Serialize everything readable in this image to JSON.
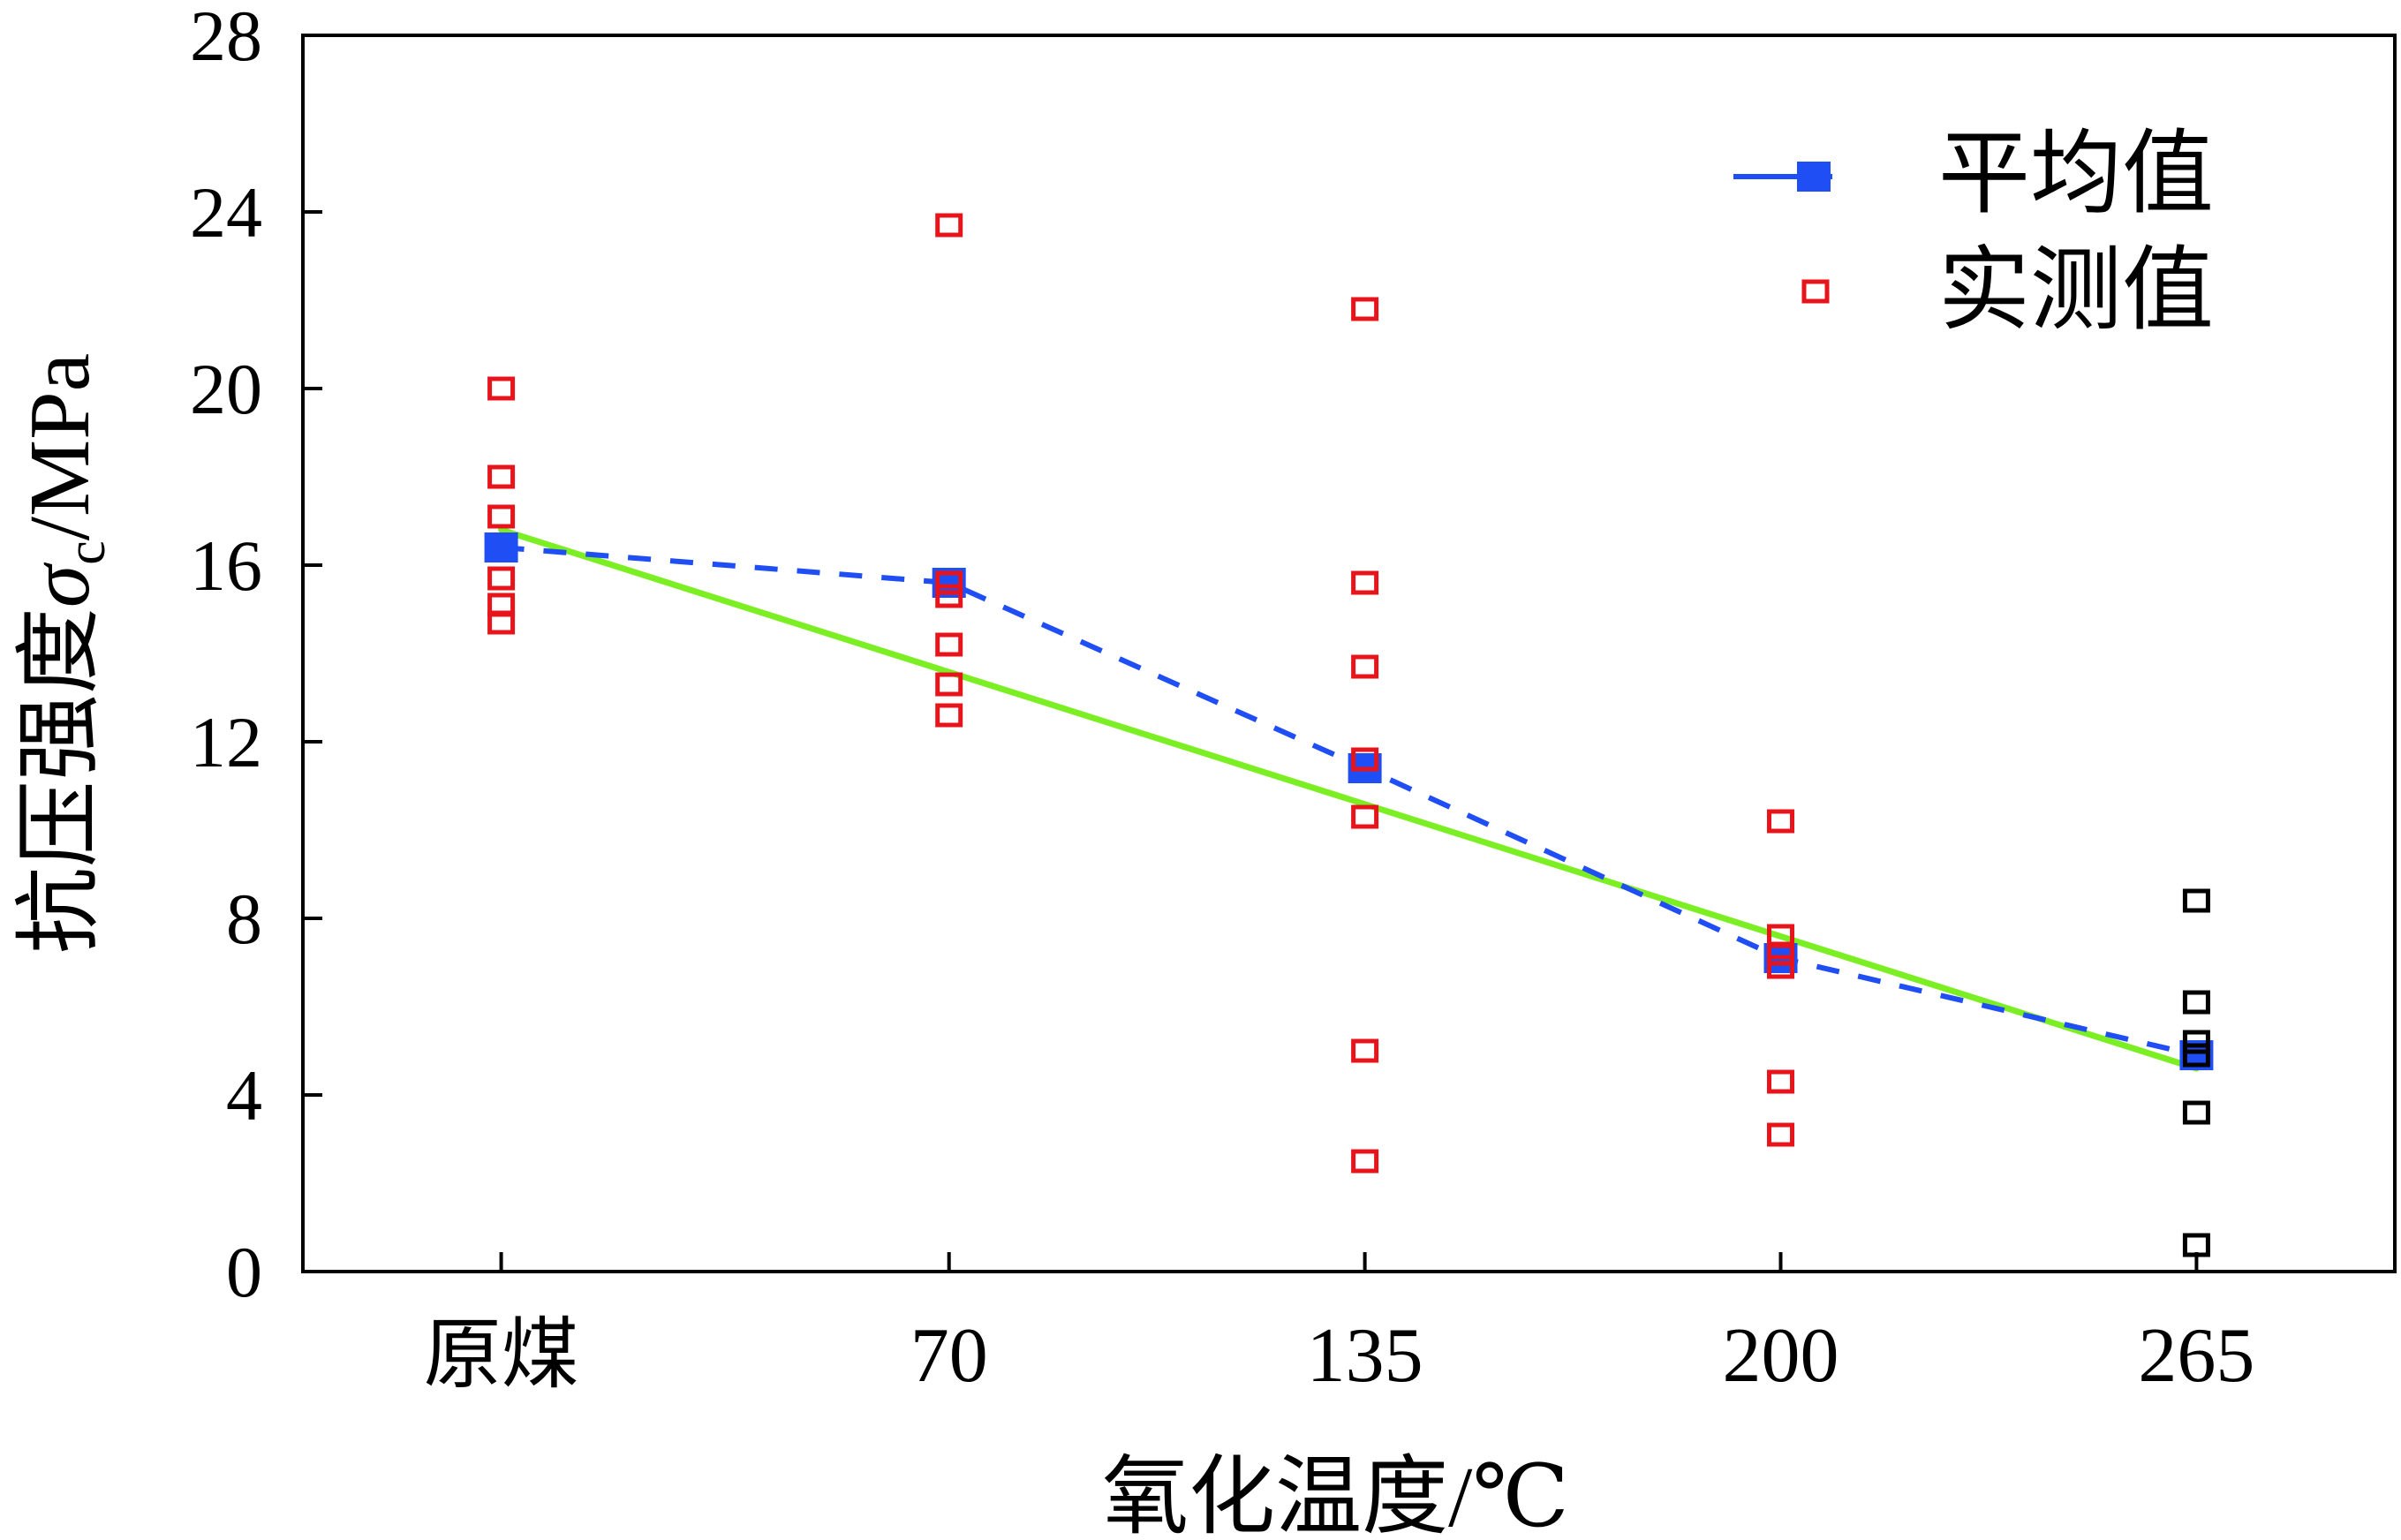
{
  "chart_data": {
    "type": "scatter",
    "title": "",
    "xlabel": "氧化温度/℃",
    "ylabel": {
      "prefix": "抗压强度",
      "symbol": "σ",
      "subscript": "c",
      "suffix": "/MPa"
    },
    "categories": [
      "原煤",
      "70",
      "135",
      "200",
      "265"
    ],
    "x_positions": [
      0,
      70,
      135,
      200,
      265
    ],
    "xlim": [
      -31,
      296
    ],
    "ylim": [
      0,
      28
    ],
    "yticks": [
      0,
      4,
      8,
      12,
      16,
      20,
      24,
      28
    ],
    "grid": false,
    "legend_position": "top-right",
    "series": [
      {
        "name": "平均值",
        "kind": "line-marker",
        "style": "dashed",
        "marker": "filled-square",
        "color": "#1f4ef5",
        "points": [
          {
            "x": 0,
            "y": 16.4
          },
          {
            "x": 70,
            "y": 15.6
          },
          {
            "x": 135,
            "y": 11.4
          },
          {
            "x": 200,
            "y": 7.1
          },
          {
            "x": 265,
            "y": 4.9
          }
        ]
      },
      {
        "name": "实测值",
        "kind": "scatter",
        "marker": "open-square",
        "color": "#e8141b",
        "points": [
          {
            "x": 0,
            "y": 20.0
          },
          {
            "x": 0,
            "y": 18.0
          },
          {
            "x": 0,
            "y": 17.1
          },
          {
            "x": 0,
            "y": 15.7
          },
          {
            "x": 0,
            "y": 15.1
          },
          {
            "x": 0,
            "y": 14.7
          },
          {
            "x": 70,
            "y": 23.7
          },
          {
            "x": 70,
            "y": 15.6
          },
          {
            "x": 70,
            "y": 15.3
          },
          {
            "x": 70,
            "y": 14.2
          },
          {
            "x": 70,
            "y": 13.3
          },
          {
            "x": 70,
            "y": 12.6
          },
          {
            "x": 135,
            "y": 21.8
          },
          {
            "x": 135,
            "y": 15.6
          },
          {
            "x": 135,
            "y": 13.7
          },
          {
            "x": 135,
            "y": 11.6
          },
          {
            "x": 135,
            "y": 10.3
          },
          {
            "x": 135,
            "y": 5.0
          },
          {
            "x": 135,
            "y": 2.5
          },
          {
            "x": 200,
            "y": 10.2
          },
          {
            "x": 200,
            "y": 7.6
          },
          {
            "x": 200,
            "y": 7.2
          },
          {
            "x": 200,
            "y": 6.9
          },
          {
            "x": 200,
            "y": 4.3
          },
          {
            "x": 200,
            "y": 3.1
          }
        ]
      },
      {
        "name": "",
        "kind": "scatter",
        "marker": "open-square",
        "color": "#000000",
        "points": [
          {
            "x": 265,
            "y": 8.4
          },
          {
            "x": 265,
            "y": 6.1
          },
          {
            "x": 265,
            "y": 5.2
          },
          {
            "x": 265,
            "y": 4.9
          },
          {
            "x": 265,
            "y": 3.6
          },
          {
            "x": 265,
            "y": 0.6
          }
        ]
      }
    ],
    "trendline": {
      "color": "#7cef24",
      "from": {
        "x": 0,
        "y": 16.8
      },
      "to": {
        "x": 265,
        "y": 4.6
      }
    }
  }
}
